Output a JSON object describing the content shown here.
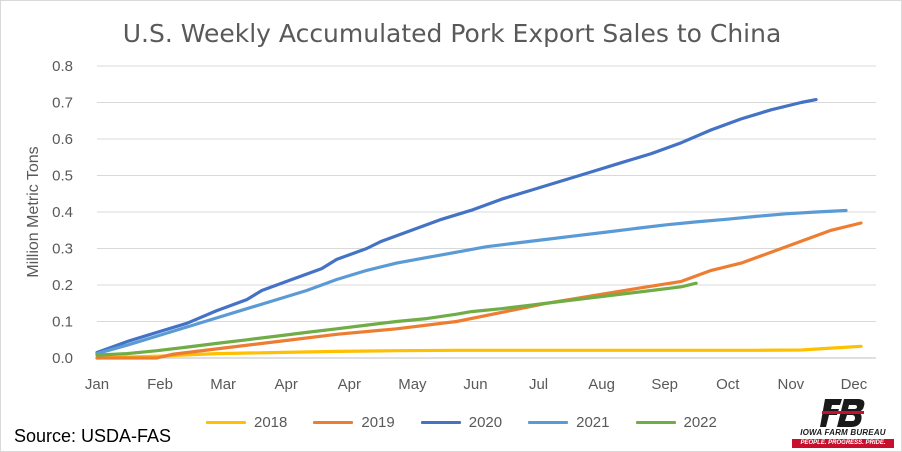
{
  "chart_data": {
    "type": "line",
    "title": "U.S. Weekly Accumulated Pork Export Sales to China",
    "xlabel": "",
    "ylabel": "Million Metric Tons",
    "ylim": [
      0,
      0.8
    ],
    "yticks": [
      "0.0",
      "0.1",
      "0.2",
      "0.3",
      "0.4",
      "0.5",
      "0.6",
      "0.7",
      "0.8"
    ],
    "xticks": [
      "Jan",
      "Feb",
      "Mar",
      "Apr",
      "Apr",
      "May",
      "Jun",
      "Jul",
      "Aug",
      "Sep",
      "Oct",
      "Nov",
      "Dec"
    ],
    "week_count": 52,
    "grid": true,
    "legend_position": "bottom",
    "series": [
      {
        "name": "2018",
        "color": "#FFC000",
        "points": [
          [
            0,
            0.0
          ],
          [
            4,
            0.005
          ],
          [
            8,
            0.012
          ],
          [
            12,
            0.015
          ],
          [
            16,
            0.018
          ],
          [
            20,
            0.02
          ],
          [
            24,
            0.021
          ],
          [
            28,
            0.021
          ],
          [
            32,
            0.021
          ],
          [
            36,
            0.021
          ],
          [
            40,
            0.021
          ],
          [
            44,
            0.021
          ],
          [
            47,
            0.022
          ],
          [
            49,
            0.027
          ],
          [
            51,
            0.032
          ]
        ]
      },
      {
        "name": "2019",
        "color": "#ED7D31",
        "points": [
          [
            0,
            0.0
          ],
          [
            4,
            0.0
          ],
          [
            5,
            0.01
          ],
          [
            8,
            0.025
          ],
          [
            12,
            0.045
          ],
          [
            16,
            0.065
          ],
          [
            20,
            0.08
          ],
          [
            24,
            0.1
          ],
          [
            27,
            0.125
          ],
          [
            30,
            0.15
          ],
          [
            33,
            0.17
          ],
          [
            36,
            0.19
          ],
          [
            39,
            0.21
          ],
          [
            41,
            0.24
          ],
          [
            43,
            0.26
          ],
          [
            45,
            0.29
          ],
          [
            47,
            0.32
          ],
          [
            49,
            0.35
          ],
          [
            51,
            0.37
          ]
        ]
      },
      {
        "name": "2020",
        "color": "#4472C4",
        "points": [
          [
            0,
            0.015
          ],
          [
            2,
            0.045
          ],
          [
            4,
            0.07
          ],
          [
            6,
            0.095
          ],
          [
            8,
            0.13
          ],
          [
            10,
            0.16
          ],
          [
            11,
            0.185
          ],
          [
            13,
            0.215
          ],
          [
            15,
            0.245
          ],
          [
            16,
            0.27
          ],
          [
            18,
            0.3
          ],
          [
            19,
            0.32
          ],
          [
            21,
            0.35
          ],
          [
            23,
            0.38
          ],
          [
            25,
            0.405
          ],
          [
            27,
            0.435
          ],
          [
            29,
            0.46
          ],
          [
            31,
            0.485
          ],
          [
            33,
            0.51
          ],
          [
            35,
            0.535
          ],
          [
            37,
            0.56
          ],
          [
            39,
            0.59
          ],
          [
            41,
            0.625
          ],
          [
            43,
            0.655
          ],
          [
            45,
            0.68
          ],
          [
            47,
            0.7
          ],
          [
            48,
            0.708
          ]
        ]
      },
      {
        "name": "2021",
        "color": "#5B9BD5",
        "points": [
          [
            0,
            0.012
          ],
          [
            2,
            0.035
          ],
          [
            4,
            0.06
          ],
          [
            6,
            0.085
          ],
          [
            8,
            0.11
          ],
          [
            10,
            0.135
          ],
          [
            12,
            0.16
          ],
          [
            14,
            0.185
          ],
          [
            16,
            0.215
          ],
          [
            18,
            0.24
          ],
          [
            20,
            0.26
          ],
          [
            22,
            0.275
          ],
          [
            24,
            0.29
          ],
          [
            26,
            0.305
          ],
          [
            28,
            0.315
          ],
          [
            30,
            0.325
          ],
          [
            32,
            0.335
          ],
          [
            34,
            0.345
          ],
          [
            36,
            0.355
          ],
          [
            38,
            0.365
          ],
          [
            40,
            0.373
          ],
          [
            42,
            0.38
          ],
          [
            44,
            0.388
          ],
          [
            46,
            0.395
          ],
          [
            48,
            0.4
          ],
          [
            50,
            0.404
          ]
        ]
      },
      {
        "name": "2022",
        "color": "#70AD47",
        "points": [
          [
            0,
            0.008
          ],
          [
            2,
            0.012
          ],
          [
            4,
            0.02
          ],
          [
            6,
            0.03
          ],
          [
            8,
            0.04
          ],
          [
            10,
            0.05
          ],
          [
            12,
            0.06
          ],
          [
            14,
            0.07
          ],
          [
            16,
            0.08
          ],
          [
            18,
            0.09
          ],
          [
            20,
            0.1
          ],
          [
            22,
            0.108
          ],
          [
            24,
            0.12
          ],
          [
            25,
            0.127
          ],
          [
            27,
            0.135
          ],
          [
            29,
            0.145
          ],
          [
            31,
            0.155
          ],
          [
            33,
            0.165
          ],
          [
            35,
            0.175
          ],
          [
            37,
            0.185
          ],
          [
            39,
            0.195
          ],
          [
            40,
            0.205
          ]
        ]
      }
    ]
  },
  "source": "Source: USDA-FAS",
  "logo": {
    "name": "IOWA FARM BUREAU",
    "tagline": "PEOPLE. PROGRESS. PRIDE.",
    "color": "#C8102E"
  }
}
